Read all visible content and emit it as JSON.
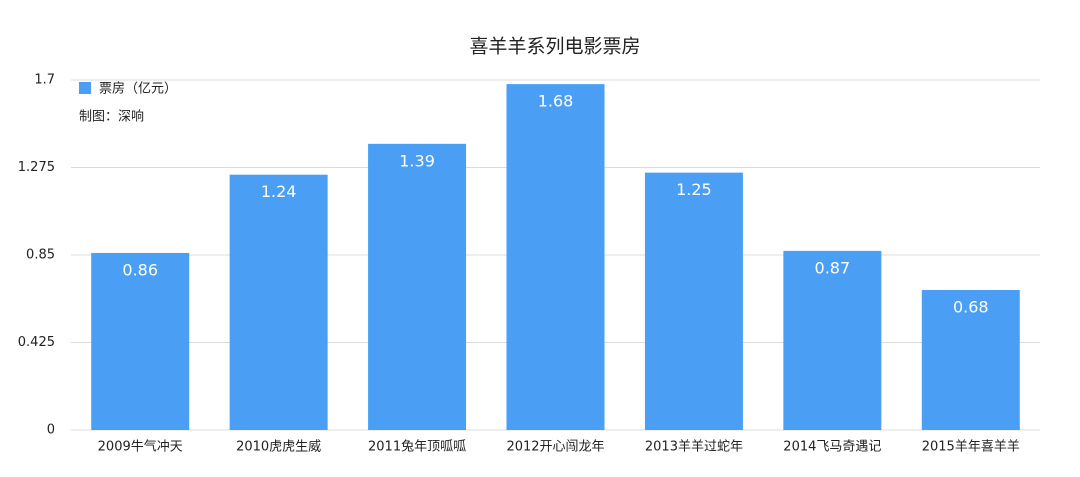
{
  "chart_data": {
    "type": "bar",
    "title": "喜羊羊系列电影票房",
    "annotation": "制图：深响",
    "categories": [
      "2009牛气冲天",
      "2010虎虎生威",
      "2011兔年顶呱呱",
      "2012开心闯龙年",
      "2013羊羊过蛇年",
      "2014飞马奇遇记",
      "2015羊年喜羊羊"
    ],
    "series": [
      {
        "name": "票房（亿元）",
        "color": "#4a9ff5",
        "values": [
          0.86,
          1.24,
          1.39,
          1.68,
          1.25,
          0.87,
          0.68
        ]
      }
    ],
    "ylim": [
      0,
      1.7
    ],
    "yticks": [
      0,
      0.425,
      0.85,
      1.275,
      1.7
    ],
    "grid": true,
    "legend": "top-left"
  }
}
